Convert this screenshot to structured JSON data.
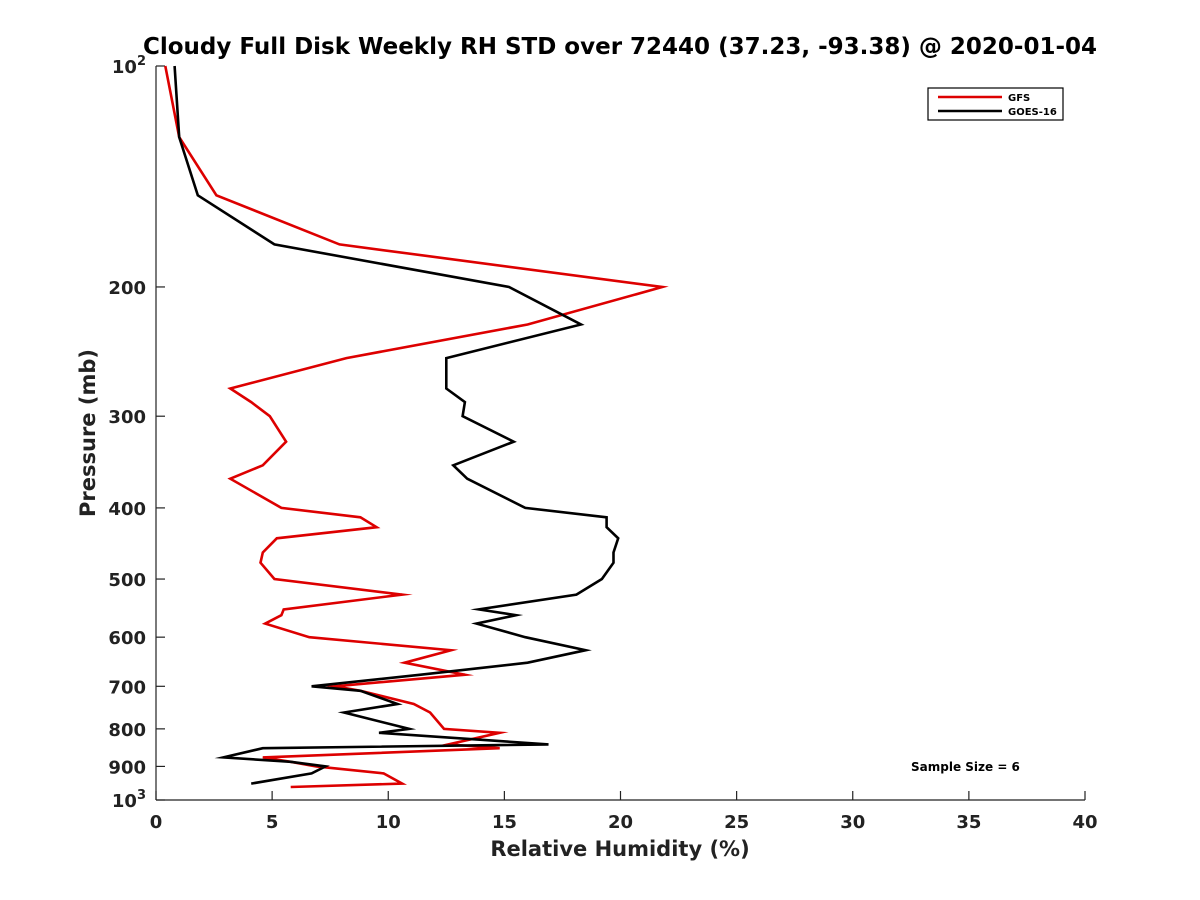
{
  "chart_data": {
    "type": "line",
    "title": "Cloudy Full Disk Weekly RH STD over 72440 (37.23, -93.38) @ 2020-01-04",
    "xlabel": "Relative Humidity (%)",
    "ylabel": "Pressure (mb)",
    "xlim": [
      0,
      40
    ],
    "ylim": [
      1000,
      100
    ],
    "y_scale": "log",
    "y_reversed": true,
    "x_ticks": [
      0,
      5,
      10,
      15,
      20,
      25,
      30,
      35,
      40
    ],
    "x_tick_labels": [
      "0",
      "5",
      "10",
      "15",
      "20",
      "25",
      "30",
      "35",
      "40"
    ],
    "y_ticks": [
      100,
      200,
      300,
      400,
      500,
      600,
      700,
      800,
      900,
      1000
    ],
    "y_tick_labels": [
      {
        "base": "10",
        "exp": "2"
      },
      {
        "base": "200",
        "exp": ""
      },
      {
        "base": "300",
        "exp": ""
      },
      {
        "base": "400",
        "exp": ""
      },
      {
        "base": "500",
        "exp": ""
      },
      {
        "base": "600",
        "exp": ""
      },
      {
        "base": "700",
        "exp": ""
      },
      {
        "base": "800",
        "exp": ""
      },
      {
        "base": "900",
        "exp": ""
      },
      {
        "base": "10",
        "exp": "3"
      }
    ],
    "grid": false,
    "legend_position": "top-right",
    "series": [
      {
        "name": "GFS",
        "color": "#dd0000",
        "points": [
          [
            0.4,
            100
          ],
          [
            1.0,
            125
          ],
          [
            2.6,
            150
          ],
          [
            7.9,
            175
          ],
          [
            21.8,
            200
          ],
          [
            16.0,
            225
          ],
          [
            8.2,
            250
          ],
          [
            3.2,
            275
          ],
          [
            4.1,
            287
          ],
          [
            4.9,
            300
          ],
          [
            5.6,
            325
          ],
          [
            4.6,
            350
          ],
          [
            3.2,
            365
          ],
          [
            5.4,
            400
          ],
          [
            8.8,
            412
          ],
          [
            9.5,
            425
          ],
          [
            5.2,
            440
          ],
          [
            4.6,
            460
          ],
          [
            4.5,
            475
          ],
          [
            5.1,
            500
          ],
          [
            10.6,
            525
          ],
          [
            5.5,
            550
          ],
          [
            5.4,
            560
          ],
          [
            4.7,
            575
          ],
          [
            6.6,
            600
          ],
          [
            12.7,
            625
          ],
          [
            10.7,
            650
          ],
          [
            13.3,
            675
          ],
          [
            7.7,
            700
          ],
          [
            8.8,
            710
          ],
          [
            11.1,
            740
          ],
          [
            11.8,
            760
          ],
          [
            12.4,
            800
          ],
          [
            14.8,
            810
          ],
          [
            12.6,
            840
          ],
          [
            14.8,
            850
          ],
          [
            4.6,
            875
          ],
          [
            5.8,
            887
          ],
          [
            6.9,
            900
          ],
          [
            9.8,
            920
          ],
          [
            10.6,
            950
          ],
          [
            5.8,
            960
          ]
        ]
      },
      {
        "name": "GOES-16",
        "color": "#000000",
        "points": [
          [
            0.8,
            100
          ],
          [
            1.0,
            125
          ],
          [
            1.8,
            150
          ],
          [
            5.1,
            175
          ],
          [
            15.2,
            200
          ],
          [
            18.3,
            225
          ],
          [
            12.5,
            250
          ],
          [
            12.5,
            275
          ],
          [
            13.3,
            287
          ],
          [
            13.2,
            300
          ],
          [
            15.4,
            325
          ],
          [
            12.8,
            350
          ],
          [
            13.4,
            365
          ],
          [
            15.9,
            400
          ],
          [
            19.4,
            412
          ],
          [
            19.4,
            425
          ],
          [
            19.9,
            440
          ],
          [
            19.7,
            460
          ],
          [
            19.7,
            475
          ],
          [
            19.2,
            500
          ],
          [
            18.1,
            525
          ],
          [
            13.9,
            550
          ],
          [
            15.5,
            560
          ],
          [
            13.8,
            575
          ],
          [
            15.9,
            600
          ],
          [
            18.5,
            625
          ],
          [
            16.0,
            650
          ],
          [
            11.4,
            675
          ],
          [
            6.7,
            700
          ],
          [
            8.8,
            710
          ],
          [
            10.4,
            740
          ],
          [
            8.1,
            760
          ],
          [
            10.9,
            800
          ],
          [
            9.6,
            810
          ],
          [
            16.9,
            840
          ],
          [
            4.6,
            850
          ],
          [
            2.9,
            875
          ],
          [
            5.8,
            887
          ],
          [
            7.3,
            900
          ],
          [
            6.7,
            920
          ],
          [
            4.1,
            950
          ]
        ]
      }
    ],
    "annotation": "Sample Size = 6"
  }
}
